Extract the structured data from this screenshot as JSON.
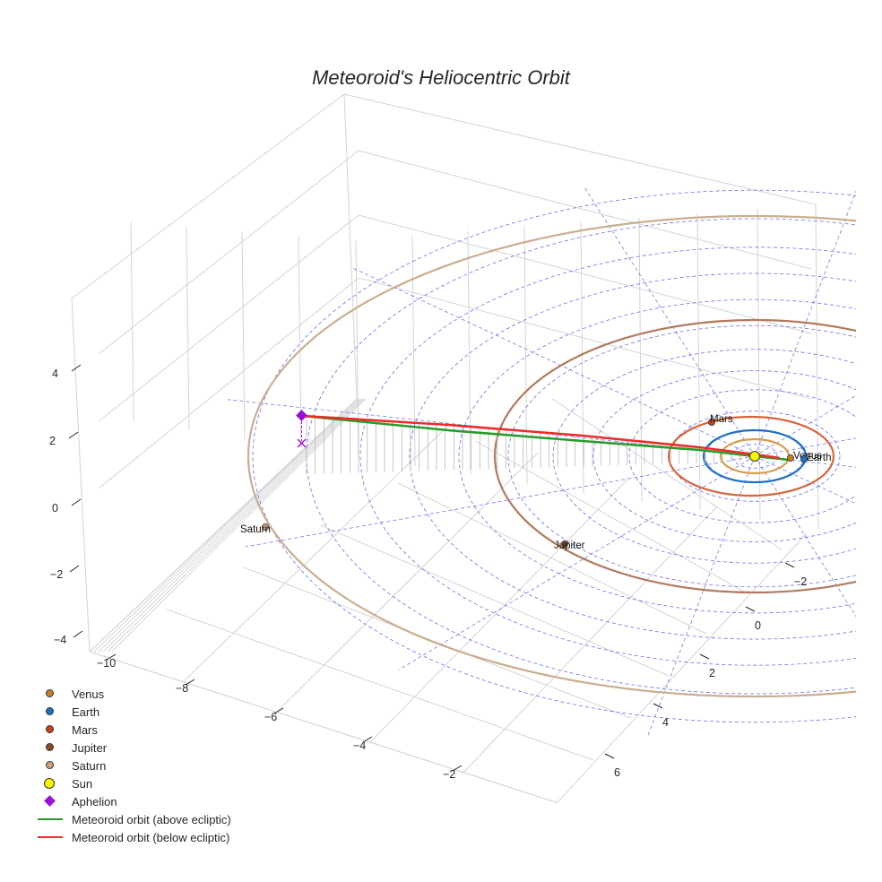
{
  "chart_data": {
    "type": "scatter3d",
    "title": "Meteoroid's Heliocentric Orbit",
    "x_ticks": [
      "−10",
      "−8",
      "−6",
      "−4",
      "−2"
    ],
    "y_ticks": [
      "−2",
      "0",
      "2",
      "4",
      "6"
    ],
    "z_ticks": [
      "4",
      "2",
      "0",
      "−2",
      "−4"
    ],
    "planets": [
      {
        "name": "Venus",
        "label": "Venus",
        "color": "#c97f1b"
      },
      {
        "name": "Earth",
        "label": "Earth",
        "color": "#1f6fc2"
      },
      {
        "name": "Mars",
        "label": "Mars",
        "color": "#c8441c"
      },
      {
        "name": "Jupiter",
        "label": "Jupiter",
        "color": "#8b4a25"
      },
      {
        "name": "Saturn",
        "label": "Saturn",
        "color": "#c9a27b"
      }
    ],
    "orbit_colors": {
      "venus": "#d79d4b",
      "earth": "#1f6fc2",
      "mars": "#d9633c",
      "jupiter": "#b07a5e",
      "saturn": "#c9ae90"
    },
    "meteoroid": {
      "aphelion_xyz": [
        -10.6,
        0.0,
        2.0
      ],
      "perihelion_xyz": [
        0.8,
        0.0,
        0.0
      ],
      "above_color": "#2a9a2a",
      "below_color": "#ee2a2a",
      "aphelion_color": "#9b10d6"
    },
    "legend": [
      {
        "label": "Venus",
        "kind": "dot",
        "color": "#c97f1b"
      },
      {
        "label": "Earth",
        "kind": "dot",
        "color": "#1f6fc2"
      },
      {
        "label": "Mars",
        "kind": "dot",
        "color": "#c8441c"
      },
      {
        "label": "Jupiter",
        "kind": "dot",
        "color": "#8b4a25"
      },
      {
        "label": "Saturn",
        "kind": "dot",
        "color": "#c9a27b"
      },
      {
        "label": "Sun",
        "kind": "sun",
        "color": "#f5f500"
      },
      {
        "label": "Aphelion",
        "kind": "diamond",
        "color": "#9b10d6"
      },
      {
        "label": "Meteoroid orbit (above ecliptic)",
        "kind": "line",
        "color": "#2a9a2a"
      },
      {
        "label": "Meteoroid orbit (below ecliptic)",
        "kind": "line",
        "color": "#ee2a2a"
      }
    ]
  }
}
